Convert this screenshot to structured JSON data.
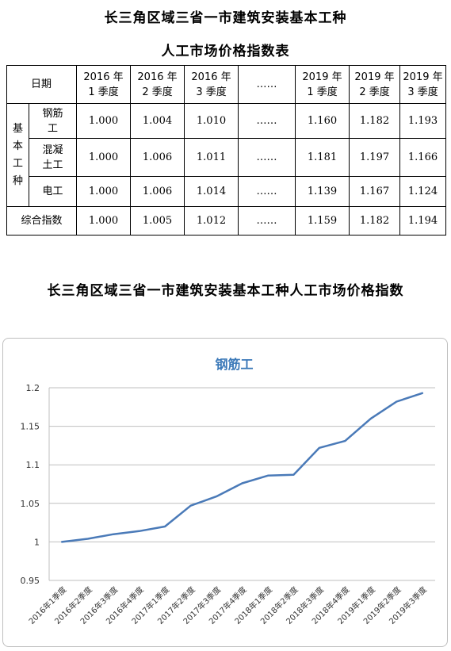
{
  "doc": {
    "title_line1": "长三角区域三省一市建筑安装基本工种",
    "title_line2": "人工市场价格指数表",
    "chart_heading": "长三角区域三省一市建筑安装基本工种人工市场价格指数"
  },
  "table": {
    "date_header": "日期",
    "col_headers": [
      [
        "2016 年",
        "1 季度"
      ],
      [
        "2016 年",
        "2 季度"
      ],
      [
        "2016 年",
        "3 季度"
      ],
      [
        "……",
        ""
      ],
      [
        "2019 年",
        "1 季度"
      ],
      [
        "2019 年",
        "2 季度"
      ],
      [
        "2019 年",
        "3 季度"
      ]
    ],
    "group_label": [
      "基",
      "本",
      "工",
      "种"
    ],
    "rows": [
      {
        "label": [
          "钢筋",
          "工"
        ],
        "values": [
          "1.000",
          "1.004",
          "1.010",
          "……",
          "1.160",
          "1.182",
          "1.193"
        ]
      },
      {
        "label": [
          "混凝",
          "土工"
        ],
        "values": [
          "1.000",
          "1.006",
          "1.011",
          "……",
          "1.181",
          "1.197",
          "1.166"
        ]
      },
      {
        "label": [
          "电工",
          ""
        ],
        "values": [
          "1.000",
          "1.006",
          "1.014",
          "……",
          "1.139",
          "1.167",
          "1.124"
        ]
      }
    ],
    "total": {
      "label": "综合指数",
      "values": [
        "1.000",
        "1.005",
        "1.012",
        "……",
        "1.159",
        "1.182",
        "1.194"
      ]
    }
  },
  "chart_data": {
    "type": "line",
    "title": "钢筋工",
    "xlabel": "",
    "ylabel": "",
    "ylim": [
      0.95,
      1.2
    ],
    "yticks": [
      "0.95",
      "1",
      "1.05",
      "1.1",
      "1.15",
      "1.2"
    ],
    "grid": true,
    "categories": [
      "2016年1季度",
      "2016年2季度",
      "2016年3季度",
      "2016年4季度",
      "2017年1季度",
      "2017年2季度",
      "2017年3季度",
      "2017年4季度",
      "2018年1季度",
      "2018年2季度",
      "2018年3季度",
      "2018年4季度",
      "2019年1季度",
      "2019年2季度",
      "2019年3季度"
    ],
    "series": [
      {
        "values": [
          1.0,
          1.004,
          1.01,
          1.014,
          1.02,
          1.047,
          1.059,
          1.076,
          1.086,
          1.087,
          1.122,
          1.131,
          1.16,
          1.182,
          1.193
        ]
      }
    ],
    "colors": {
      "line": "#4a7ab8",
      "title": "#3a78b8",
      "grid": "#bfbfbf"
    }
  }
}
